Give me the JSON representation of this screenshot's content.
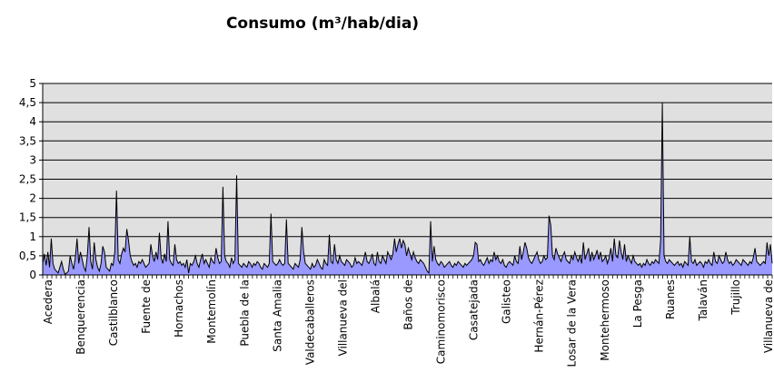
{
  "chart_data": {
    "type": "area",
    "title": "Consumo (m³/hab/dia)",
    "xlabel": "",
    "ylabel": "",
    "ylim": [
      0,
      5
    ],
    "yticks": [
      "0",
      "0,5",
      "1",
      "1,5",
      "2",
      "2,5",
      "3",
      "3,5",
      "4",
      "4,5",
      "5"
    ],
    "grid": true,
    "legend": "none",
    "colors": {
      "fill": "#9999ff",
      "line": "#000000",
      "plot_background": "#e0e0e0",
      "grid": "#000000"
    },
    "x_tick_labels": [
      "Acedera",
      "Benquerencia",
      "Castilblanco",
      "Fuente de",
      "Hornachos",
      "Montemolín",
      "Puebla de la",
      "Santa Amalia",
      "Valdecaballeros",
      "Villanueva del",
      "Albalá",
      "Baños de",
      "Caminomorisco",
      "Casatejada",
      "Galisteo",
      "Hernán-Pérez",
      "Losar de la Vera",
      "Montehermoso",
      "La Pesga",
      "Ruanes",
      "Talaván",
      "Trujillo",
      "Villanueva de"
    ],
    "values": [
      0.3,
      0.55,
      0.25,
      0.6,
      0.2,
      0.95,
      0.3,
      0.15,
      0.1,
      0.05,
      0.2,
      0.35,
      0.15,
      0.02,
      0.05,
      0.1,
      0.5,
      0.3,
      0.15,
      0.45,
      0.95,
      0.3,
      0.6,
      0.4,
      0.2,
      0.1,
      0.5,
      1.25,
      0.35,
      0.15,
      0.85,
      0.4,
      0.2,
      0.1,
      0.3,
      0.75,
      0.6,
      0.2,
      0.15,
      0.1,
      0.3,
      0.25,
      0.6,
      2.2,
      0.4,
      0.3,
      0.55,
      0.7,
      0.6,
      1.2,
      0.9,
      0.5,
      0.35,
      0.25,
      0.3,
      0.2,
      0.35,
      0.3,
      0.4,
      0.3,
      0.2,
      0.25,
      0.3,
      0.8,
      0.5,
      0.35,
      0.6,
      0.4,
      1.1,
      0.45,
      0.3,
      0.55,
      0.35,
      1.4,
      0.4,
      0.3,
      0.25,
      0.8,
      0.4,
      0.3,
      0.35,
      0.25,
      0.3,
      0.2,
      0.4,
      0.05,
      0.3,
      0.25,
      0.35,
      0.5,
      0.3,
      0.2,
      0.4,
      0.55,
      0.3,
      0.4,
      0.3,
      0.2,
      0.45,
      0.35,
      0.3,
      0.7,
      0.45,
      0.3,
      0.35,
      2.3,
      0.5,
      0.35,
      0.3,
      0.2,
      0.45,
      0.3,
      0.4,
      2.6,
      0.3,
      0.25,
      0.2,
      0.3,
      0.25,
      0.2,
      0.35,
      0.3,
      0.2,
      0.3,
      0.25,
      0.35,
      0.3,
      0.2,
      0.15,
      0.3,
      0.25,
      0.2,
      0.3,
      1.6,
      0.35,
      0.3,
      0.25,
      0.3,
      0.4,
      0.3,
      0.25,
      0.3,
      1.45,
      0.3,
      0.25,
      0.2,
      0.15,
      0.3,
      0.25,
      0.2,
      0.4,
      1.25,
      0.6,
      0.3,
      0.25,
      0.2,
      0.15,
      0.3,
      0.2,
      0.25,
      0.4,
      0.3,
      0.2,
      0.15,
      0.4,
      0.3,
      0.25,
      1.05,
      0.35,
      0.3,
      0.8,
      0.4,
      0.3,
      0.5,
      0.35,
      0.3,
      0.25,
      0.4,
      0.35,
      0.3,
      0.2,
      0.25,
      0.45,
      0.3,
      0.35,
      0.3,
      0.25,
      0.4,
      0.6,
      0.35,
      0.3,
      0.4,
      0.55,
      0.3,
      0.25,
      0.6,
      0.35,
      0.3,
      0.5,
      0.4,
      0.3,
      0.6,
      0.5,
      0.4,
      0.55,
      0.95,
      0.6,
      0.8,
      0.95,
      0.7,
      0.9,
      0.8,
      0.5,
      0.7,
      0.55,
      0.4,
      0.6,
      0.45,
      0.35,
      0.3,
      0.4,
      0.35,
      0.3,
      0.2,
      0.1,
      0.05,
      1.4,
      0.35,
      0.75,
      0.4,
      0.3,
      0.25,
      0.35,
      0.3,
      0.2,
      0.25,
      0.3,
      0.35,
      0.25,
      0.2,
      0.3,
      0.25,
      0.35,
      0.3,
      0.25,
      0.2,
      0.3,
      0.25,
      0.3,
      0.35,
      0.4,
      0.5,
      0.85,
      0.8,
      0.35,
      0.4,
      0.3,
      0.25,
      0.35,
      0.45,
      0.3,
      0.4,
      0.35,
      0.6,
      0.4,
      0.5,
      0.35,
      0.3,
      0.4,
      0.25,
      0.2,
      0.3,
      0.35,
      0.3,
      0.25,
      0.5,
      0.35,
      0.3,
      0.75,
      0.4,
      0.6,
      0.85,
      0.7,
      0.45,
      0.35,
      0.3,
      0.4,
      0.5,
      0.6,
      0.4,
      0.3,
      0.35,
      0.5,
      0.4,
      0.45,
      1.55,
      1.3,
      0.5,
      0.4,
      0.7,
      0.55,
      0.45,
      0.35,
      0.5,
      0.6,
      0.4,
      0.35,
      0.3,
      0.5,
      0.4,
      0.6,
      0.45,
      0.35,
      0.5,
      0.3,
      0.85,
      0.4,
      0.55,
      0.7,
      0.35,
      0.6,
      0.4,
      0.5,
      0.65,
      0.4,
      0.6,
      0.35,
      0.4,
      0.5,
      0.3,
      0.45,
      0.7,
      0.35,
      0.95,
      0.5,
      0.45,
      0.9,
      0.6,
      0.4,
      0.8,
      0.35,
      0.5,
      0.4,
      0.3,
      0.5,
      0.35,
      0.3,
      0.25,
      0.3,
      0.2,
      0.3,
      0.25,
      0.4,
      0.3,
      0.25,
      0.35,
      0.3,
      0.4,
      0.35,
      0.3,
      0.9,
      4.5,
      0.5,
      0.35,
      0.3,
      0.4,
      0.35,
      0.3,
      0.25,
      0.3,
      0.35,
      0.25,
      0.3,
      0.2,
      0.35,
      0.3,
      0.25,
      1.0,
      0.35,
      0.3,
      0.4,
      0.25,
      0.3,
      0.35,
      0.3,
      0.2,
      0.35,
      0.3,
      0.4,
      0.3,
      0.25,
      0.6,
      0.35,
      0.3,
      0.5,
      0.4,
      0.3,
      0.35,
      0.6,
      0.4,
      0.3,
      0.35,
      0.25,
      0.3,
      0.4,
      0.35,
      0.3,
      0.25,
      0.4,
      0.35,
      0.3,
      0.25,
      0.35,
      0.3,
      0.45,
      0.7,
      0.35,
      0.3,
      0.25,
      0.3,
      0.35,
      0.3,
      0.85,
      0.5,
      0.8,
      0.3
    ]
  }
}
